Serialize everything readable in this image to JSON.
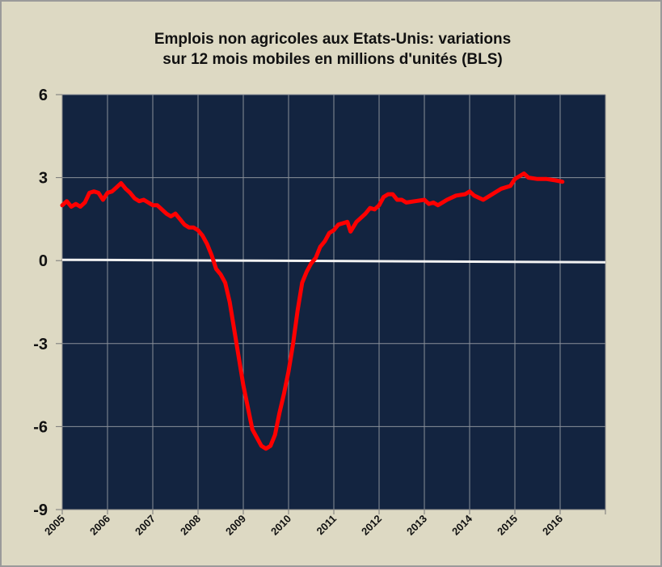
{
  "chart_data": {
    "type": "line",
    "title_line1": "Emplois non agricoles aux Etats-Unis: variations",
    "title_line2": "sur 12 mois mobiles en millions d'unités (BLS)",
    "xlabel": "",
    "ylabel": "",
    "xlim": [
      2005,
      2017
    ],
    "ylim": [
      -9,
      6
    ],
    "yticks": [
      6,
      3,
      0,
      -3,
      -6,
      -9
    ],
    "xticks": [
      "2005",
      "2006",
      "2007",
      "2008",
      "2009",
      "2010",
      "2011",
      "2012",
      "2013",
      "2014",
      "2015",
      "2016"
    ],
    "grid": true,
    "colors": {
      "background": "#ddd9c3",
      "plot": "#132440",
      "series": "#ff0000",
      "zero_line": "#f2f2f2",
      "grid": "#8a8f99"
    },
    "series": [
      {
        "name": "Emplois non agricoles",
        "x": [
          2005.0,
          2005.1,
          2005.2,
          2005.3,
          2005.4,
          2005.5,
          2005.6,
          2005.7,
          2005.8,
          2005.9,
          2006.0,
          2006.1,
          2006.2,
          2006.3,
          2006.4,
          2006.5,
          2006.6,
          2006.7,
          2006.8,
          2006.9,
          2007.0,
          2007.1,
          2007.2,
          2007.3,
          2007.4,
          2007.5,
          2007.6,
          2007.7,
          2007.8,
          2007.9,
          2008.0,
          2008.1,
          2008.2,
          2008.3,
          2008.4,
          2008.5,
          2008.6,
          2008.7,
          2008.8,
          2008.9,
          2009.0,
          2009.1,
          2009.2,
          2009.3,
          2009.4,
          2009.5,
          2009.6,
          2009.7,
          2009.8,
          2009.9,
          2010.0,
          2010.1,
          2010.2,
          2010.3,
          2010.4,
          2010.5,
          2010.6,
          2010.7,
          2010.8,
          2010.9,
          2011.0,
          2011.1,
          2011.2,
          2011.3,
          2011.37,
          2011.5,
          2011.7,
          2011.8,
          2011.9,
          2012.0,
          2012.1,
          2012.2,
          2012.3,
          2012.4,
          2012.5,
          2012.6,
          2012.8,
          2013.0,
          2013.1,
          2013.2,
          2013.3,
          2013.5,
          2013.7,
          2013.9,
          2014.0,
          2014.1,
          2014.3,
          2014.5,
          2014.7,
          2014.9,
          2015.0,
          2015.1,
          2015.2,
          2015.3,
          2015.5,
          2015.7,
          2015.9,
          2016.05
        ],
        "y": [
          2.0,
          2.15,
          1.95,
          2.05,
          1.95,
          2.1,
          2.45,
          2.5,
          2.45,
          2.2,
          2.45,
          2.5,
          2.65,
          2.8,
          2.6,
          2.45,
          2.25,
          2.15,
          2.2,
          2.1,
          2.0,
          2.0,
          1.85,
          1.7,
          1.6,
          1.7,
          1.5,
          1.3,
          1.2,
          1.2,
          1.1,
          0.9,
          0.6,
          0.2,
          -0.3,
          -0.5,
          -0.8,
          -1.5,
          -2.5,
          -3.5,
          -4.5,
          -5.3,
          -6.1,
          -6.4,
          -6.7,
          -6.8,
          -6.7,
          -6.3,
          -5.5,
          -4.8,
          -4.0,
          -3.0,
          -1.8,
          -0.8,
          -0.4,
          -0.1,
          0.1,
          0.5,
          0.7,
          1.0,
          1.1,
          1.3,
          1.35,
          1.4,
          1.05,
          1.4,
          1.7,
          1.9,
          1.85,
          2.0,
          2.3,
          2.4,
          2.4,
          2.2,
          2.2,
          2.1,
          2.15,
          2.2,
          2.05,
          2.1,
          2.0,
          2.2,
          2.35,
          2.4,
          2.5,
          2.35,
          2.2,
          2.4,
          2.6,
          2.7,
          2.95,
          3.05,
          3.15,
          3.0,
          2.95,
          2.95,
          2.9,
          2.85
        ]
      }
    ]
  }
}
